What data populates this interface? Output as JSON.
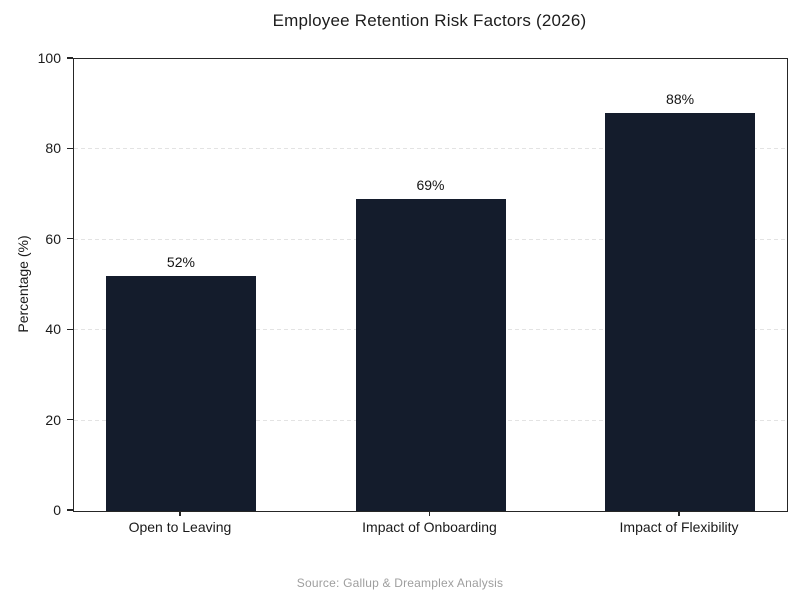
{
  "chart_data": {
    "type": "bar",
    "title": "Employee Retention Risk Factors (2026)",
    "categories": [
      "Open to Leaving",
      "Impact of Onboarding",
      "Impact of Flexibility"
    ],
    "values": [
      52,
      69,
      88
    ],
    "bar_labels": [
      "52%",
      "69%",
      "88%"
    ],
    "xlabel": "",
    "ylabel": "Percentage (%)",
    "ylim": [
      0,
      100
    ],
    "yticks": [
      0,
      20,
      40,
      60,
      80,
      100
    ],
    "grid": "horizontal-dashed",
    "legend": "none",
    "bar_color": "#141c2c",
    "grid_color": "#e3e3e3",
    "spine_color": "#262626",
    "source_note": "Source: Gallup & Dreamplex Analysis"
  }
}
